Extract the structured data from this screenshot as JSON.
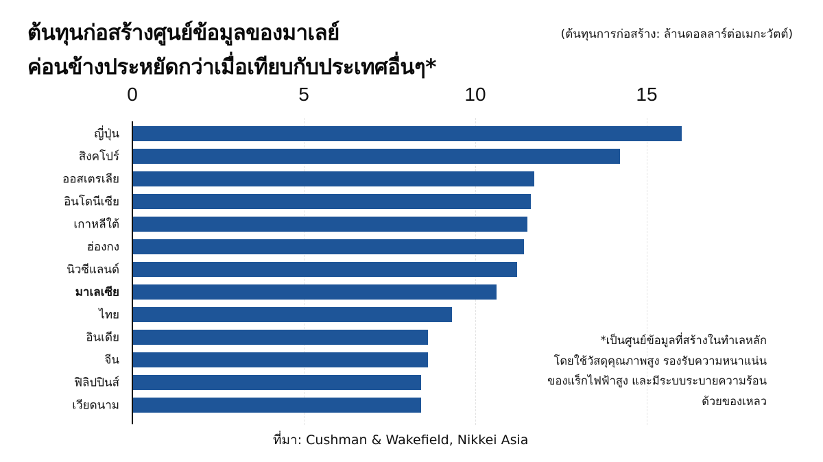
{
  "header": {
    "title_line1": "ต้นทุนก่อสร้างศูนย์ข้อมูลของมาเลย์",
    "title_line2": "ค่อนข้างประหยัดกว่าเมื่อเทียบกับประเทศอื่นๆ*",
    "unit_note": "(ต้นทุนการก่อสร้าง: ล้านดอลลาร์ต่อเมกะวัตต์)"
  },
  "axis": {
    "ticks": [
      "0",
      "5",
      "10",
      "15"
    ]
  },
  "footnote": {
    "lines": [
      "*เป็นศูนย์ข้อมูลที่สร้างในทำเลหลัก",
      "โดยใช้วัสดุคุณภาพสูง รองรับความหนาแน่น",
      "ของแร็กไฟฟ้าสูง และมีระบบระบายความร้อน",
      "ด้วยของเหลว"
    ]
  },
  "source": "ที่มา: Cushman & Wakefield, Nikkei Asia",
  "colors": {
    "bar": "#1e5598",
    "text": "#111111",
    "background": "#ffffff"
  },
  "chart_data": {
    "type": "bar",
    "orientation": "horizontal",
    "title": "ต้นทุนก่อสร้างศูนย์ข้อมูลของมาเลย์ ค่อนข้างประหยัดกว่าเมื่อเทียบกับประเทศอื่นๆ*",
    "subtitle": "(ต้นทุนการก่อสร้าง: ล้านดอลลาร์ต่อเมกะวัตต์)",
    "xlabel": "ล้านดอลลาร์ต่อเมกะวัตต์",
    "ylabel": "",
    "xlim": [
      0,
      16.5
    ],
    "xticks": [
      0,
      5,
      10,
      15
    ],
    "grid": true,
    "highlight_category": "มาเลเซีย",
    "categories": [
      "ญี่ปุ่น",
      "สิงคโปร์",
      "ออสเตรเลีย",
      "อินโดนีเซีย",
      "เกาหลีใต้",
      "ฮ่องกง",
      "นิวซีแลนด์",
      "มาเลเซีย",
      "ไทย",
      "อินเดีย",
      "จีน",
      "ฟิลิปปินส์",
      "เวียดนาม"
    ],
    "values": [
      16.0,
      14.2,
      11.7,
      11.6,
      11.5,
      11.4,
      11.2,
      10.6,
      9.3,
      8.6,
      8.6,
      8.4,
      8.4
    ],
    "annotations": [
      "*เป็นศูนย์ข้อมูลที่สร้างในทำเลหลัก โดยใช้วัสดุคุณภาพสูง รองรับความหนาแน่นของแร็กไฟฟ้าสูง และมีระบบระบายความร้อนด้วยของเหลว"
    ],
    "source": "ที่มา: Cushman & Wakefield, Nikkei Asia"
  }
}
